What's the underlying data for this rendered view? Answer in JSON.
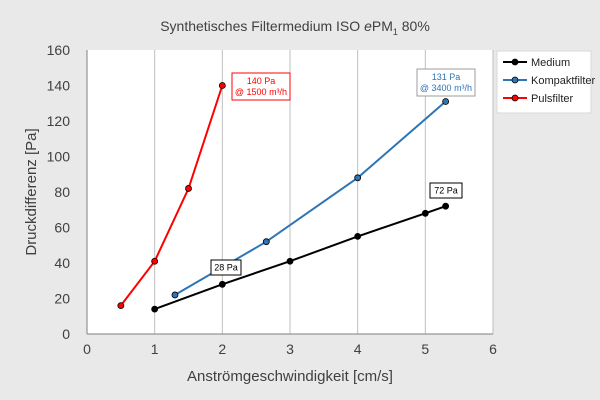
{
  "chart_data": {
    "type": "line",
    "title_main": "Synthetisches Filtermedium ISO ",
    "title_em": "e",
    "title_pm": "PM",
    "title_sub": "1",
    "title_rest": " 80%",
    "xlabel": "Anströmgeschwindigkeit [cm/s]",
    "ylabel": "Druckdifferenz [Pa]",
    "xlim": [
      0,
      6
    ],
    "ylim": [
      0,
      160
    ],
    "xticks": [
      0,
      1,
      2,
      3,
      4,
      5,
      6
    ],
    "yticks": [
      0,
      20,
      40,
      60,
      80,
      100,
      120,
      140,
      160
    ],
    "grid": "vertical",
    "legend_position": "right",
    "series": [
      {
        "name": "Medium",
        "color": "#000000",
        "x": [
          1.0,
          2.0,
          3.0,
          4.0,
          5.0,
          5.3
        ],
        "y": [
          14,
          28,
          41,
          55,
          68,
          72
        ]
      },
      {
        "name": "Kompaktfilter",
        "color": "#2e75b6",
        "x": [
          1.3,
          2.65,
          4.0,
          5.3
        ],
        "y": [
          22,
          52,
          88,
          131
        ]
      },
      {
        "name": "Pulsfilter",
        "color": "#ff0000",
        "x": [
          0.5,
          1.0,
          1.5,
          2.0
        ],
        "y": [
          16,
          41,
          82,
          140
        ]
      }
    ],
    "annotations": [
      {
        "lines": [
          "140 Pa",
          "@ 1500 m³/h"
        ],
        "color": "#ff0000",
        "border": "#ff0000"
      },
      {
        "lines": [
          "131 Pa",
          "@ 3400 m³/h"
        ],
        "color": "#2e75b6",
        "border": "#9e9e9e"
      },
      {
        "lines": [
          "72 Pa"
        ],
        "color": "#000000",
        "border": "#000000"
      },
      {
        "lines": [
          "28 Pa"
        ],
        "color": "#000000",
        "border": "#000000"
      }
    ]
  }
}
